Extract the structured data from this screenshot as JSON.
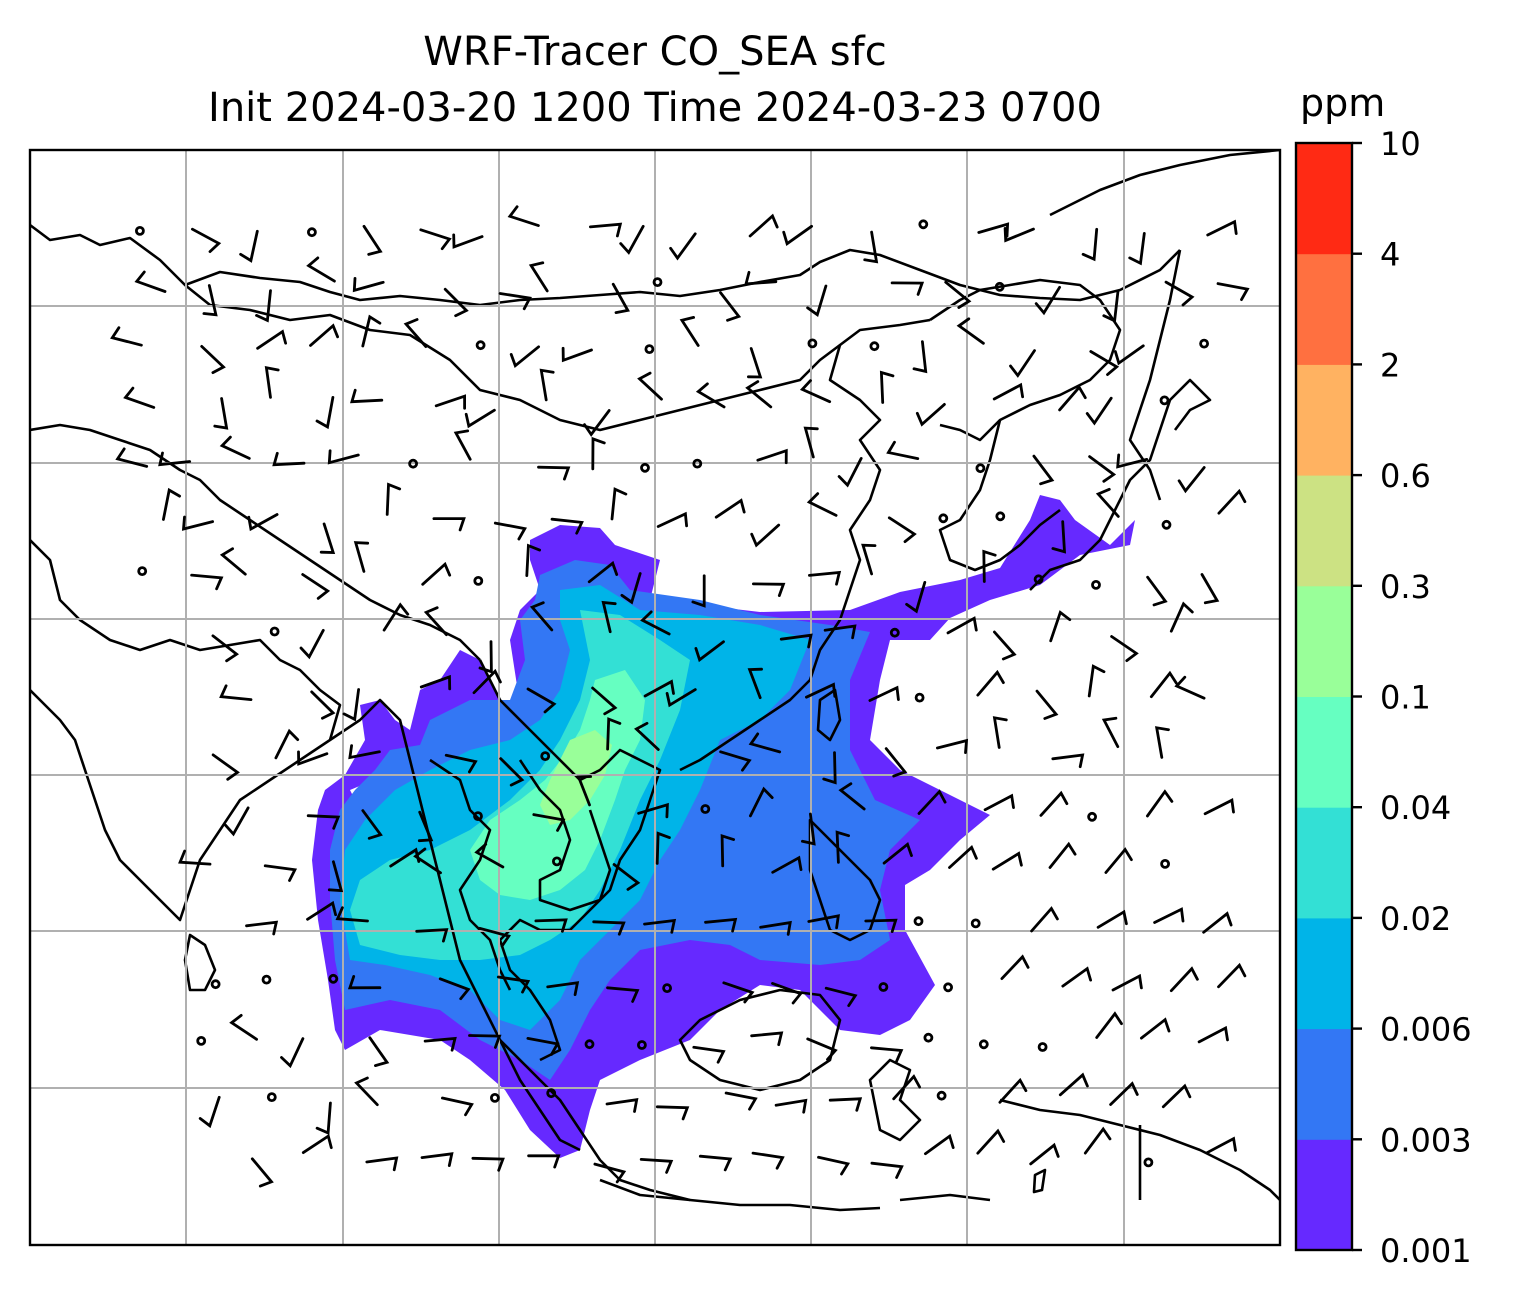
{
  "title": {
    "line1": "WRF-Tracer CO_SEA sfc",
    "line2": "Init 2024-03-20 1200 Time 2024-03-23 0700"
  },
  "colorbar": {
    "unit": "ppm",
    "levels": [
      "0.001",
      "0.003",
      "0.006",
      "0.02",
      "0.04",
      "0.1",
      "0.3",
      "0.6",
      "2",
      "4",
      "10"
    ],
    "colors": [
      "#6629ff",
      "#3377f4",
      "#00b4e8",
      "#33e0d5",
      "#66ffc1",
      "#99ff99",
      "#cce283",
      "#ffb261",
      "#ff7040",
      "#ff2a14"
    ]
  },
  "map": {
    "field": "CO_SEA",
    "level": "sfc",
    "gridlines": true
  }
}
